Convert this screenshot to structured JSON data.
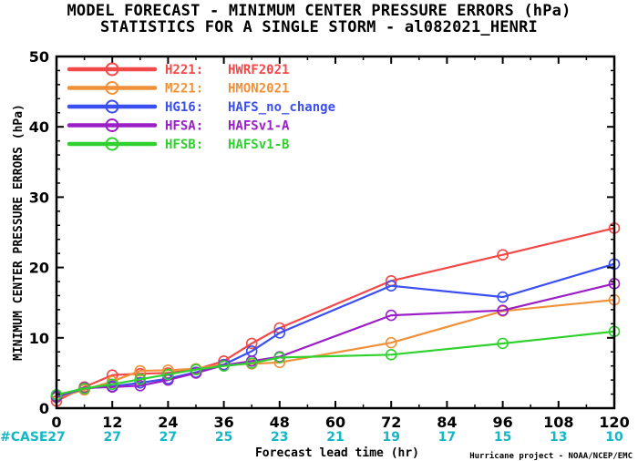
{
  "header": {
    "title_line1": "MODEL FORECAST - MINIMUM CENTER PRESSURE ERRORS (hPa)",
    "title_line2": "STATISTICS FOR A SINGLE STORM - al082021_HENRI"
  },
  "footer": {
    "case_label": "#CASE",
    "credit": "Hurricane project - NOAA/NCEP/EMC"
  },
  "chart_data": {
    "type": "line",
    "title": "MODEL FORECAST - MINIMUM CENTER PRESSURE ERRORS (hPa)",
    "subtitle": "STATISTICS FOR A SINGLE STORM - al082021_HENRI",
    "xlabel": "Forecast lead time (hr)",
    "ylabel": "MINIMUM CENTER PRESSURE ERRORS (hPa)",
    "xlim": [
      0,
      120
    ],
    "ylim": [
      0,
      50
    ],
    "x_ticks": [
      0,
      12,
      24,
      36,
      48,
      60,
      72,
      84,
      96,
      108,
      120
    ],
    "y_ticks": [
      0,
      10,
      20,
      30,
      40,
      50
    ],
    "grid": false,
    "legend_position": "top-left",
    "case_counts": [
      {
        "x": 0,
        "n": "27"
      },
      {
        "x": 12,
        "n": "27"
      },
      {
        "x": 24,
        "n": "27"
      },
      {
        "x": 36,
        "n": "25"
      },
      {
        "x": 48,
        "n": "23"
      },
      {
        "x": 60,
        "n": "21"
      },
      {
        "x": 72,
        "n": "19"
      },
      {
        "x": 84,
        "n": "17"
      },
      {
        "x": 96,
        "n": "15"
      },
      {
        "x": 108,
        "n": "13"
      },
      {
        "x": 120,
        "n": "10"
      }
    ],
    "series": [
      {
        "code": "H221:",
        "name": "HWRF2021",
        "color": "#f24848",
        "x": [
          0,
          6,
          12,
          18,
          24,
          30,
          36,
          42,
          48,
          72,
          96,
          120
        ],
        "y": [
          1.0,
          3.0,
          4.7,
          4.9,
          5.0,
          5.5,
          6.7,
          9.2,
          11.4,
          18.1,
          21.8,
          25.6
        ]
      },
      {
        "code": "M221:",
        "name": "HMON2021",
        "color": "#f0913a",
        "x": [
          0,
          6,
          12,
          18,
          24,
          30,
          36,
          42,
          48,
          72,
          96,
          120
        ],
        "y": [
          1.5,
          2.6,
          3.8,
          5.3,
          5.4,
          5.6,
          6.2,
          6.3,
          6.5,
          9.3,
          13.8,
          15.4
        ]
      },
      {
        "code": "HG16:",
        "name": "HAFS_no_change",
        "color": "#3b4ef0",
        "x": [
          0,
          6,
          12,
          18,
          24,
          30,
          36,
          42,
          48,
          72,
          96,
          120
        ],
        "y": [
          1.6,
          2.8,
          3.1,
          3.6,
          4.2,
          5.1,
          6.2,
          8.1,
          10.7,
          17.4,
          15.8,
          20.5
        ]
      },
      {
        "code": "HFSA:",
        "name": "HAFSv1-A",
        "color": "#9b1fc7",
        "x": [
          0,
          6,
          12,
          18,
          24,
          30,
          36,
          42,
          48,
          72,
          96,
          120
        ],
        "y": [
          1.7,
          2.9,
          3.0,
          3.2,
          4.0,
          5.0,
          6.1,
          6.7,
          7.3,
          13.2,
          13.9,
          17.7
        ]
      },
      {
        "code": "HFSB:",
        "name": "HAFSv1-B",
        "color": "#2fd12f",
        "x": [
          0,
          6,
          12,
          18,
          24,
          30,
          36,
          42,
          48,
          72,
          96,
          120
        ],
        "y": [
          1.9,
          2.8,
          3.4,
          4.1,
          4.8,
          5.5,
          6.0,
          6.4,
          7.2,
          7.6,
          9.2,
          10.9
        ]
      }
    ]
  }
}
